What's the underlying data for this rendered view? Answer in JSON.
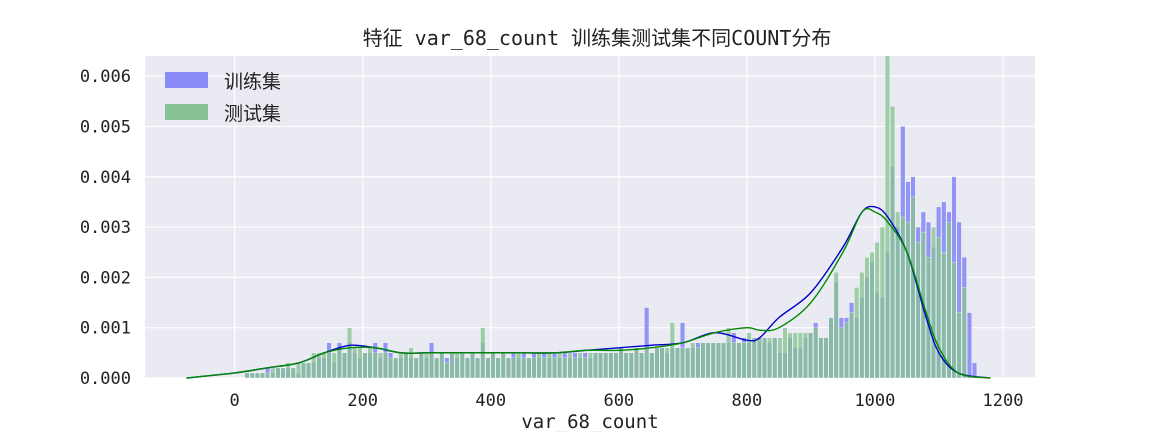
{
  "chart_data": {
    "type": "bar",
    "title": "特征 var_68_count 训练集测试集不同COUNT分布",
    "xlabel": "var_68_count",
    "ylabel": "",
    "xlim": [
      -140,
      1250
    ],
    "ylim": [
      0,
      0.0064
    ],
    "xticks": [
      0,
      200,
      400,
      600,
      800,
      1000,
      1200
    ],
    "yticks": [
      0,
      0.001,
      0.002,
      0.003,
      0.004,
      0.005,
      0.006
    ],
    "ytick_labels": [
      "0.000",
      "0.001",
      "0.002",
      "0.003",
      "0.004",
      "0.005",
      "0.006"
    ],
    "grid": true,
    "legend_position": "top-left",
    "bin_start": 0,
    "bin_width": 8,
    "series": [
      {
        "name": "训练集",
        "color": "#8a8cf5",
        "line_color": "#0000cc",
        "values": [
          0.0,
          0.0,
          0.0001,
          0.0001,
          0.0001,
          0.0001,
          0.0002,
          0.0001,
          0.0002,
          0.0002,
          0.0002,
          0.0002,
          0.0001,
          0.0003,
          0.0003,
          0.0003,
          0.0004,
          0.0004,
          0.0007,
          0.0003,
          0.0007,
          0.0005,
          0.0007,
          0.0005,
          0.0004,
          0.0005,
          0.0005,
          0.0007,
          0.0004,
          0.0007,
          0.0005,
          0.0004,
          0.0004,
          0.0005,
          0.0004,
          0.0004,
          0.0005,
          0.0004,
          0.0007,
          0.0004,
          0.0005,
          0.0004,
          0.0005,
          0.0004,
          0.0005,
          0.0004,
          0.0005,
          0.0004,
          0.0007,
          0.0004,
          0.0005,
          0.0004,
          0.0005,
          0.0004,
          0.0005,
          0.0004,
          0.0005,
          0.0004,
          0.0005,
          0.0004,
          0.0005,
          0.0004,
          0.0005,
          0.0004,
          0.0005,
          0.0004,
          0.0005,
          0.0004,
          0.0005,
          0.0004,
          0.0005,
          0.0005,
          0.0005,
          0.0005,
          0.0005,
          0.0006,
          0.0005,
          0.0005,
          0.0006,
          0.0005,
          0.0014,
          0.0005,
          0.0006,
          0.0006,
          0.0005,
          0.0006,
          0.0006,
          0.0011,
          0.0006,
          0.0006,
          0.0007,
          0.0007,
          0.0007,
          0.0007,
          0.0007,
          0.0007,
          0.0007,
          0.0009,
          0.0007,
          0.0008,
          0.0007,
          0.0008,
          0.0008,
          0.0008,
          0.0007,
          0.0008,
          0.0005,
          0.0005,
          0.0008,
          0.0006,
          0.0006,
          0.0008,
          0.0009,
          0.0011,
          0.0008,
          0.0008,
          0.0012,
          0.0019,
          0.0012,
          0.0012,
          0.0015,
          0.0012,
          0.0016,
          0.002,
          0.0023,
          0.0017,
          0.0016,
          0.0025,
          0.0042,
          0.003,
          0.005,
          0.0039,
          0.004,
          0.003,
          0.0033,
          0.0031,
          0.0026,
          0.0034,
          0.0035,
          0.0033,
          0.004,
          0.0031,
          0.0024,
          0.0013,
          0.0003,
          0.0
        ]
      },
      {
        "name": "测试集",
        "color": "#88c294",
        "line_color": "#008800",
        "values": [
          0.0,
          0.0,
          0.0001,
          0.0001,
          0.0001,
          0.0001,
          0.0001,
          0.0002,
          0.0002,
          0.0002,
          0.0003,
          0.0002,
          0.0003,
          0.0003,
          0.0003,
          0.0005,
          0.0005,
          0.0005,
          0.0005,
          0.0005,
          0.0006,
          0.0005,
          0.001,
          0.0006,
          0.0006,
          0.0005,
          0.0006,
          0.0005,
          0.0005,
          0.0005,
          0.0004,
          0.0004,
          0.0005,
          0.0005,
          0.0006,
          0.0004,
          0.0005,
          0.0005,
          0.0005,
          0.0004,
          0.0005,
          0.0003,
          0.0005,
          0.0005,
          0.0005,
          0.0004,
          0.0005,
          0.0004,
          0.001,
          0.0004,
          0.0005,
          0.0004,
          0.0005,
          0.0004,
          0.0004,
          0.0005,
          0.0004,
          0.0004,
          0.0004,
          0.0005,
          0.0004,
          0.0005,
          0.0004,
          0.0005,
          0.0004,
          0.0005,
          0.0004,
          0.0005,
          0.0004,
          0.0005,
          0.0005,
          0.0005,
          0.0005,
          0.0005,
          0.0005,
          0.0006,
          0.0005,
          0.0005,
          0.0006,
          0.0005,
          0.0006,
          0.0005,
          0.0006,
          0.0006,
          0.0006,
          0.0011,
          0.0006,
          0.0006,
          0.0006,
          0.0007,
          0.0006,
          0.0007,
          0.0007,
          0.0007,
          0.0007,
          0.0007,
          0.001,
          0.0007,
          0.0007,
          0.0007,
          0.0009,
          0.0008,
          0.0008,
          0.0008,
          0.0008,
          0.0008,
          0.0008,
          0.001,
          0.0009,
          0.0009,
          0.0009,
          0.0009,
          0.0009,
          0.001,
          0.0008,
          0.0008,
          0.0012,
          0.0021,
          0.001,
          0.0011,
          0.0013,
          0.0018,
          0.0021,
          0.0024,
          0.0025,
          0.0027,
          0.003,
          0.0064,
          0.0054,
          0.0033,
          0.0032,
          0.0031,
          0.0036,
          0.0027,
          0.0029,
          0.0024,
          0.003,
          0.0028,
          0.0025,
          0.0031,
          0.0023,
          0.0013,
          0.0018,
          0.0
        ]
      }
    ],
    "kde": [
      {
        "name": "训练集",
        "x": [
          -75,
          0,
          50,
          100,
          140,
          180,
          220,
          260,
          300,
          350,
          400,
          450,
          500,
          550,
          600,
          650,
          700,
          750,
          800,
          820,
          850,
          900,
          950,
          980,
          1000,
          1020,
          1050,
          1080,
          1100,
          1130,
          1180
        ],
        "y": [
          0.0,
          0.0001,
          0.0002,
          0.0003,
          0.0005,
          0.00065,
          0.0006,
          0.0005,
          0.0005,
          0.0005,
          0.0005,
          0.0005,
          0.0005,
          0.00055,
          0.0006,
          0.00065,
          0.0007,
          0.0009,
          0.00075,
          0.0008,
          0.0012,
          0.0017,
          0.0026,
          0.0033,
          0.0034,
          0.0032,
          0.0025,
          0.0012,
          0.0005,
          0.0001,
          0.0
        ]
      },
      {
        "name": "测试集",
        "x": [
          -75,
          0,
          50,
          100,
          140,
          180,
          220,
          260,
          300,
          350,
          400,
          450,
          500,
          550,
          600,
          650,
          700,
          750,
          800,
          820,
          850,
          900,
          950,
          980,
          1000,
          1020,
          1050,
          1080,
          1100,
          1130,
          1180
        ],
        "y": [
          0.0,
          0.0001,
          0.0002,
          0.0003,
          0.0005,
          0.0006,
          0.0006,
          0.0005,
          0.0005,
          0.0005,
          0.0005,
          0.0005,
          0.0005,
          0.00055,
          0.00055,
          0.0006,
          0.0007,
          0.0009,
          0.001,
          0.00095,
          0.001,
          0.0015,
          0.0025,
          0.0033,
          0.0033,
          0.0031,
          0.0025,
          0.0013,
          0.0006,
          0.0001,
          0.0
        ]
      }
    ]
  }
}
